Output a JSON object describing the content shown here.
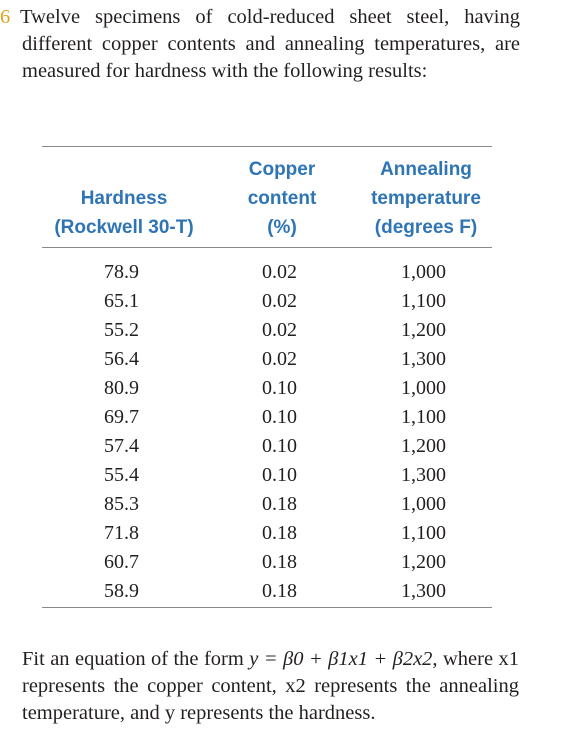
{
  "problem": {
    "number": "6",
    "intro": "Twelve specimens of cold-reduced sheet steel, having different copper contents and annealing temperatures, are measured for hardness with the following results:",
    "outro_before_eq": "Fit an equation of the form ",
    "equation": "y = β0 + β1x1 + β2x2,",
    "outro_after_eq": " where x1 represents the copper content, x2 represents the annealing temperature, and y represents the hardness."
  },
  "table": {
    "headers": [
      {
        "lines": [
          "Hardness",
          "(Rockwell 30-T)"
        ]
      },
      {
        "lines": [
          "Copper",
          "content",
          "(%)"
        ]
      },
      {
        "lines": [
          "Annealing",
          "temperature",
          "(degrees F)"
        ]
      }
    ],
    "hardness": [
      "78.9",
      "65.1",
      "55.2",
      "56.4",
      "80.9",
      "69.7",
      "57.4",
      "55.4",
      "85.3",
      "71.8",
      "60.7",
      "58.9"
    ],
    "copper": [
      "0.02",
      "0.02",
      "0.02",
      "0.02",
      "0.10",
      "0.10",
      "0.10",
      "0.10",
      "0.18",
      "0.18",
      "0.18",
      "0.18"
    ],
    "temperature": [
      "1,000",
      "1,100",
      "1,200",
      "1,300",
      "1,000",
      "1,100",
      "1,200",
      "1,300",
      "1,000",
      "1,100",
      "1,200",
      "1,300"
    ]
  },
  "colors": {
    "header_text": "#2f75b5",
    "problem_number": "#e0a31f",
    "body_text": "#231f20",
    "rule": "#8a8a8a"
  }
}
